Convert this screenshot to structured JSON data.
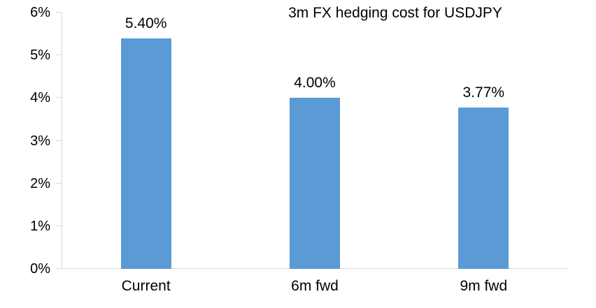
{
  "chart_data": {
    "type": "bar",
    "title": "3m FX hedging cost for USDJPY",
    "categories": [
      "Current",
      "6m fwd",
      "9m fwd"
    ],
    "values": [
      5.4,
      4.0,
      3.77
    ],
    "data_labels": [
      "5.40%",
      "4.00%",
      "3.77%"
    ],
    "xlabel": "",
    "ylabel": "",
    "ylim": [
      0,
      6
    ],
    "ytick_step": 1,
    "ytick_labels": [
      "0%",
      "1%",
      "2%",
      "3%",
      "4%",
      "5%",
      "6%"
    ],
    "grid": false,
    "legend": "none",
    "bar_color": "#5B9BD5",
    "axis_color": "#D9D9D9",
    "text_color": "#000000"
  }
}
